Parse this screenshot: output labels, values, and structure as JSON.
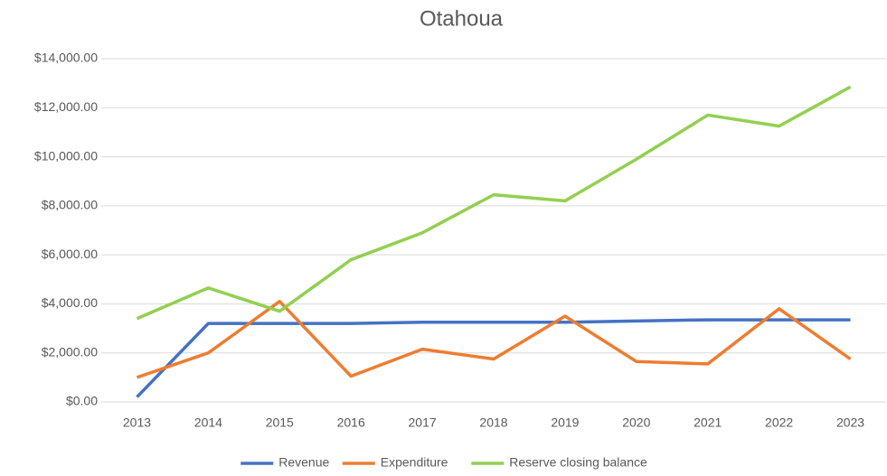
{
  "chart_data": {
    "type": "line",
    "title": "Otahoua",
    "categories": [
      "2013",
      "2014",
      "2015",
      "2016",
      "2017",
      "2018",
      "2019",
      "2020",
      "2021",
      "2022",
      "2023"
    ],
    "series": [
      {
        "name": "Revenue",
        "color": "#4472c4",
        "values": [
          200,
          3200,
          3200,
          3200,
          3250,
          3250,
          3250,
          3300,
          3350,
          3350,
          3350
        ]
      },
      {
        "name": "Expenditure",
        "color": "#ed7d31",
        "values": [
          1000,
          2000,
          4100,
          1050,
          2150,
          1750,
          3500,
          1650,
          1550,
          3800,
          1750
        ]
      },
      {
        "name": "Reserve closing balance",
        "color": "#92d050",
        "values": [
          3400,
          4650,
          3700,
          5800,
          6900,
          8450,
          8200,
          9900,
          11700,
          11250,
          12850
        ]
      }
    ],
    "ylim": [
      0,
      14000
    ],
    "yticks": [
      {
        "value": 0,
        "label": "$0.00"
      },
      {
        "value": 2000,
        "label": "$2,000.00"
      },
      {
        "value": 4000,
        "label": "$4,000.00"
      },
      {
        "value": 6000,
        "label": "$6,000.00"
      },
      {
        "value": 8000,
        "label": "$8,000.00"
      },
      {
        "value": 10000,
        "label": "$10,000.00"
      },
      {
        "value": 12000,
        "label": "$12,000.00"
      },
      {
        "value": 14000,
        "label": "$14,000.00"
      }
    ],
    "grid": true,
    "legend": "bottom"
  }
}
